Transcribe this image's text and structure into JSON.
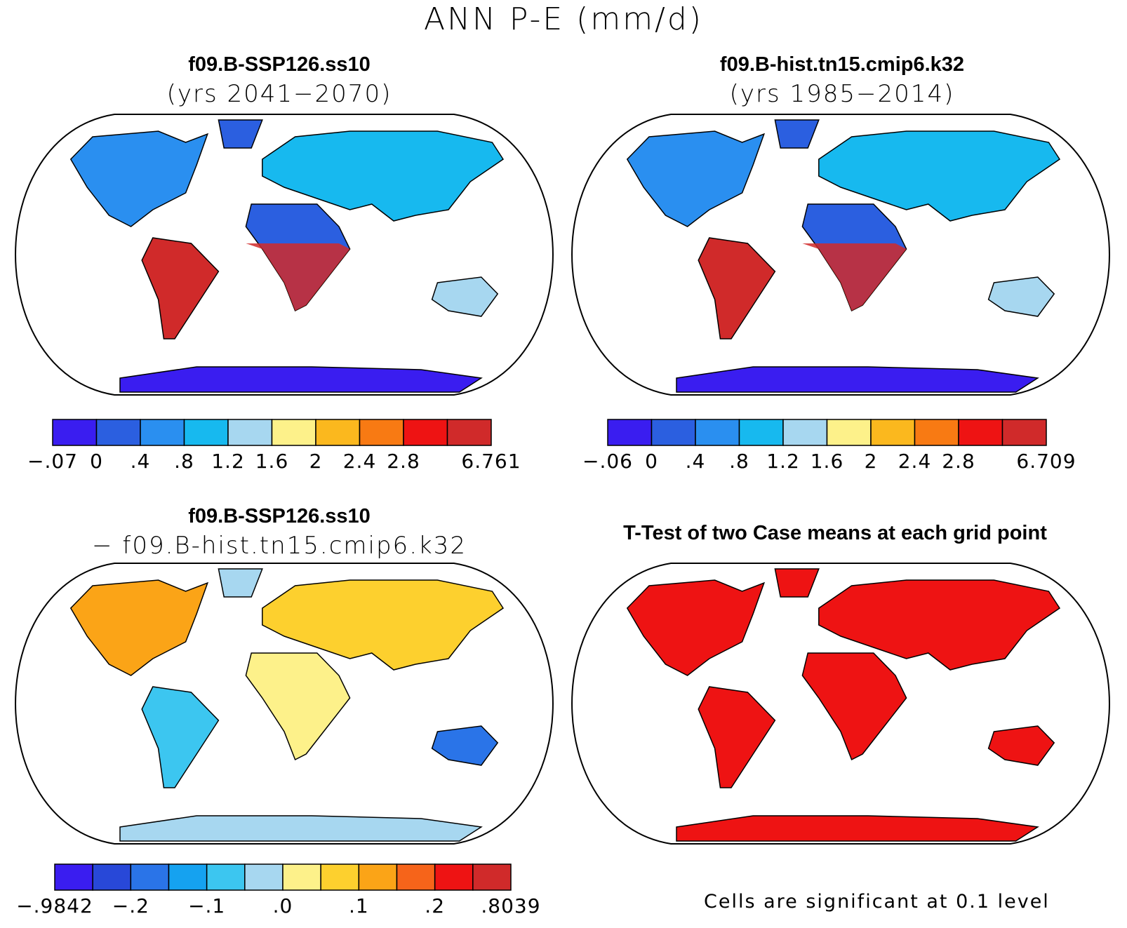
{
  "main_title": "ANN P-E (mm/d)",
  "palettes": {
    "abs": [
      "#3a1df0",
      "#2b5fe0",
      "#2a8ff0",
      "#17b9ef",
      "#a7d7f0",
      "#fdf18a",
      "#fbb81e",
      "#f87a13",
      "#ee1313",
      "#d02a2a"
    ],
    "diff": [
      "#3a1df0",
      "#2848d8",
      "#2a74e8",
      "#15a2f0",
      "#3cc6f0",
      "#a7d7f0",
      "#fdf18a",
      "#fdd02e",
      "#fba417",
      "#f6641a",
      "#ee1313",
      "#d02a2a"
    ]
  },
  "panels": [
    {
      "id": "top-left",
      "title": "f09.B-SSP126.ss10",
      "subtitle": "(yrs 2041−2070)",
      "colorbar_labels": [
        "−.07",
        "0",
        ".4",
        ".8",
        "1.2",
        "1.6",
        "2",
        "2.4",
        "2.8",
        "6.761"
      ]
    },
    {
      "id": "top-right",
      "title": "f09.B-hist.tn15.cmip6.k32",
      "subtitle": "(yrs 1985−2014)",
      "colorbar_labels": [
        "−.06",
        "0",
        ".4",
        ".8",
        "1.2",
        "1.6",
        "2",
        "2.4",
        "2.8",
        "6.709"
      ]
    },
    {
      "id": "bottom-left",
      "title": "f09.B-SSP126.ss10",
      "subtitle": "− f09.B-hist.tn15.cmip6.k32",
      "colorbar_labels": [
        "−.9842",
        "−.2",
        "−.1",
        ".0",
        ".1",
        ".2",
        ".8039"
      ]
    },
    {
      "id": "bottom-right",
      "title": "T-Test of two Case means at each grid point",
      "footnote": "Cells are significant at 0.1 level",
      "significance_color": "#ee1313"
    }
  ]
}
